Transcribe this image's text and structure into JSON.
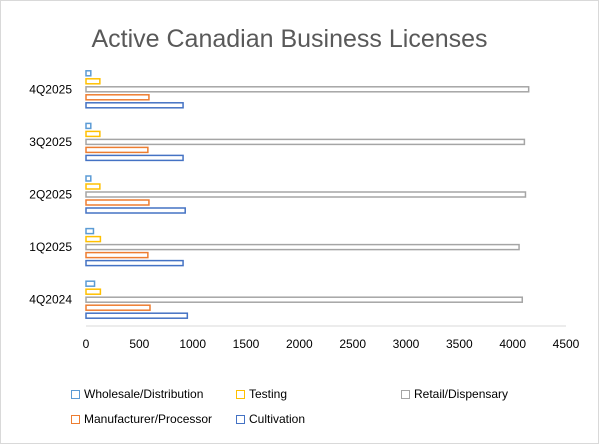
{
  "chart_data": {
    "type": "bar",
    "orientation": "horizontal",
    "title": "Active Canadian Business Licenses",
    "categories": [
      "4Q2024",
      "1Q2025",
      "2Q2025",
      "3Q2025",
      "4Q2025"
    ],
    "series": [
      {
        "name": "Wholesale/Distribution",
        "color": "#5b9bd5",
        "values": [
          80,
          70,
          45,
          45,
          45
        ]
      },
      {
        "name": "Testing",
        "color": "#ffc000",
        "values": [
          135,
          135,
          130,
          130,
          130
        ]
      },
      {
        "name": "Retail/Dispensary",
        "color": "#a5a5a5",
        "values": [
          4090,
          4060,
          4120,
          4110,
          4150
        ]
      },
      {
        "name": "Manufacturer/Processor",
        "color": "#ed7d31",
        "values": [
          600,
          580,
          590,
          580,
          590
        ]
      },
      {
        "name": "Cultivation",
        "color": "#4472c4",
        "values": [
          950,
          910,
          930,
          910,
          910
        ]
      }
    ],
    "xlim": [
      0,
      4500
    ],
    "xticks": [
      0,
      500,
      1000,
      1500,
      2000,
      2500,
      3000,
      3500,
      4000,
      4500
    ],
    "grid": false,
    "legend_position": "bottom"
  }
}
